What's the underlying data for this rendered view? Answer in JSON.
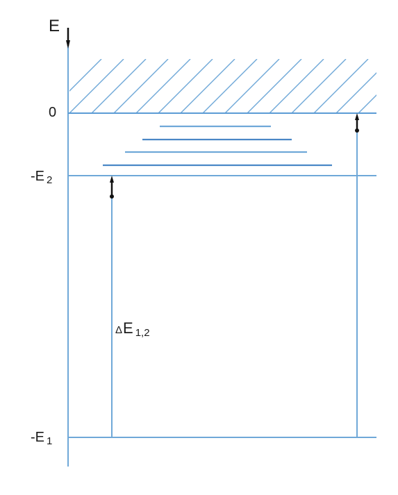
{
  "diagram": {
    "axis_label": "E",
    "levels": {
      "zero": "0",
      "e2": {
        "prefix": "-E",
        "sub": "2"
      },
      "e1": {
        "prefix": "-E",
        "sub": "1"
      }
    },
    "transition": {
      "symbol": "Δ",
      "main": "E",
      "sub": "1,2"
    },
    "colors": {
      "lines": "#6fa8d8",
      "excited_levels": "#5b9bd5",
      "arrowheads": "#111111",
      "text": "#1a1a1a"
    }
  }
}
